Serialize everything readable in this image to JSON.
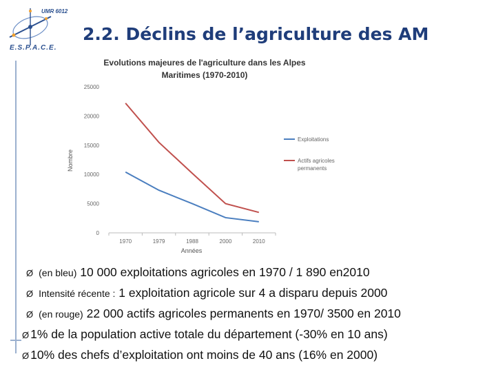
{
  "logo": {
    "lab": "UMR 6012",
    "name": "E.S.P.A.C.E."
  },
  "slide": {
    "title": "2.2. Déclins de l’agriculture des AM"
  },
  "chart_data": {
    "type": "line",
    "title_line1": "Evolutions majeures de l'agriculture dans les Alpes",
    "title_line2": "Maritimes (1970-2010)",
    "xlabel": "Années",
    "ylabel": "Nombre",
    "categories": [
      "1970",
      "1979",
      "1988",
      "2000",
      "2010"
    ],
    "yticks": [
      "0",
      "5000",
      "10000",
      "15000",
      "20000",
      "25000"
    ],
    "ylim": [
      0,
      25000
    ],
    "grid": false,
    "legend_position": "right",
    "series": [
      {
        "name": "Exploitations",
        "color": "#4a7ebf",
        "values": [
          10400,
          7300,
          5000,
          2600,
          1900
        ]
      },
      {
        "name": "Actifs agricoles permanents",
        "legend_line1": "Actifs agricoles",
        "legend_line2": "permanents",
        "color": "#c0504d",
        "values": [
          22200,
          15500,
          10200,
          5000,
          3500
        ]
      }
    ]
  },
  "bullets": {
    "b1_small": "(en bleu)",
    "b1_text": "10 000 exploitations agricoles en 1970 / 1 890 en2010",
    "b2_small": "Intensité récente :",
    "b2_text": "1 exploitation agricole sur 4 a disparu depuis 2000",
    "b3_small": "(en rouge)",
    "b3_text": "22 000 actifs agricoles permanents en 1970/ 3500 en 2010",
    "b4_text": "1% de la population active totale du département (-30% en 10 ans)",
    "b5_text": "10% des chefs d’exploitation ont moins de 40 ans (16% en 2000)",
    "arrow": "Ø"
  }
}
